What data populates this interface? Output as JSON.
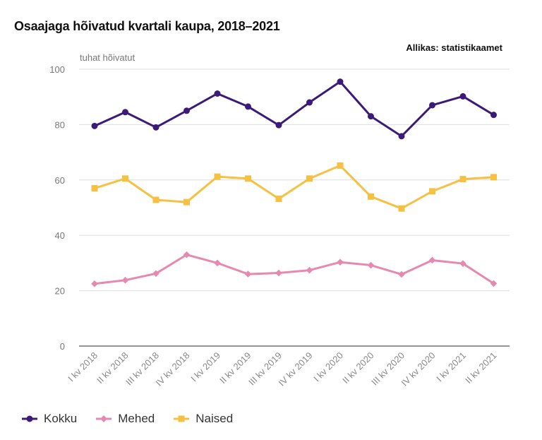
{
  "title": "Osaajaga hõivatud kvartali kaupa, 2018–2021",
  "source": "Allikas: statistikaamet",
  "chart_data": {
    "type": "line",
    "title": "Osaajaga hõivatud kvartali kaupa, 2018–2021",
    "ylabel": "tuhat hõivatut",
    "xlabel": "",
    "ylim": [
      0,
      100
    ],
    "yticks": [
      0,
      20,
      40,
      60,
      80,
      100
    ],
    "grid": true,
    "legend_position": "bottom-left",
    "categories": [
      "I kv 2018",
      "II kv 2018",
      "III kv 2018",
      "IV kv 2018",
      "I kv 2019",
      "II kv 2019",
      "III kv 2019",
      "IV kv 2019",
      "I kv 2020",
      "II kv 2020",
      "III kv 2020",
      "IV kv 2020",
      "I kv 2021",
      "II kv 2021"
    ],
    "series": [
      {
        "name": "Kokku",
        "color": "#3b1a78",
        "marker": "circle",
        "values": [
          79.5,
          84.5,
          79.0,
          85.0,
          91.2,
          86.5,
          79.8,
          88.0,
          95.5,
          83.0,
          75.8,
          87.0,
          90.2,
          83.5
        ]
      },
      {
        "name": "Mehed",
        "color": "#e589b0",
        "marker": "diamond",
        "values": [
          22.5,
          23.8,
          26.2,
          33.0,
          30.0,
          26.0,
          26.4,
          27.4,
          30.3,
          29.2,
          25.9,
          31.0,
          29.8,
          22.6
        ]
      },
      {
        "name": "Naised",
        "color": "#f6c043",
        "marker": "square",
        "values": [
          57.0,
          60.5,
          52.8,
          52.0,
          61.2,
          60.5,
          53.2,
          60.5,
          65.2,
          54.0,
          49.7,
          55.9,
          60.3,
          61.0
        ]
      }
    ]
  }
}
